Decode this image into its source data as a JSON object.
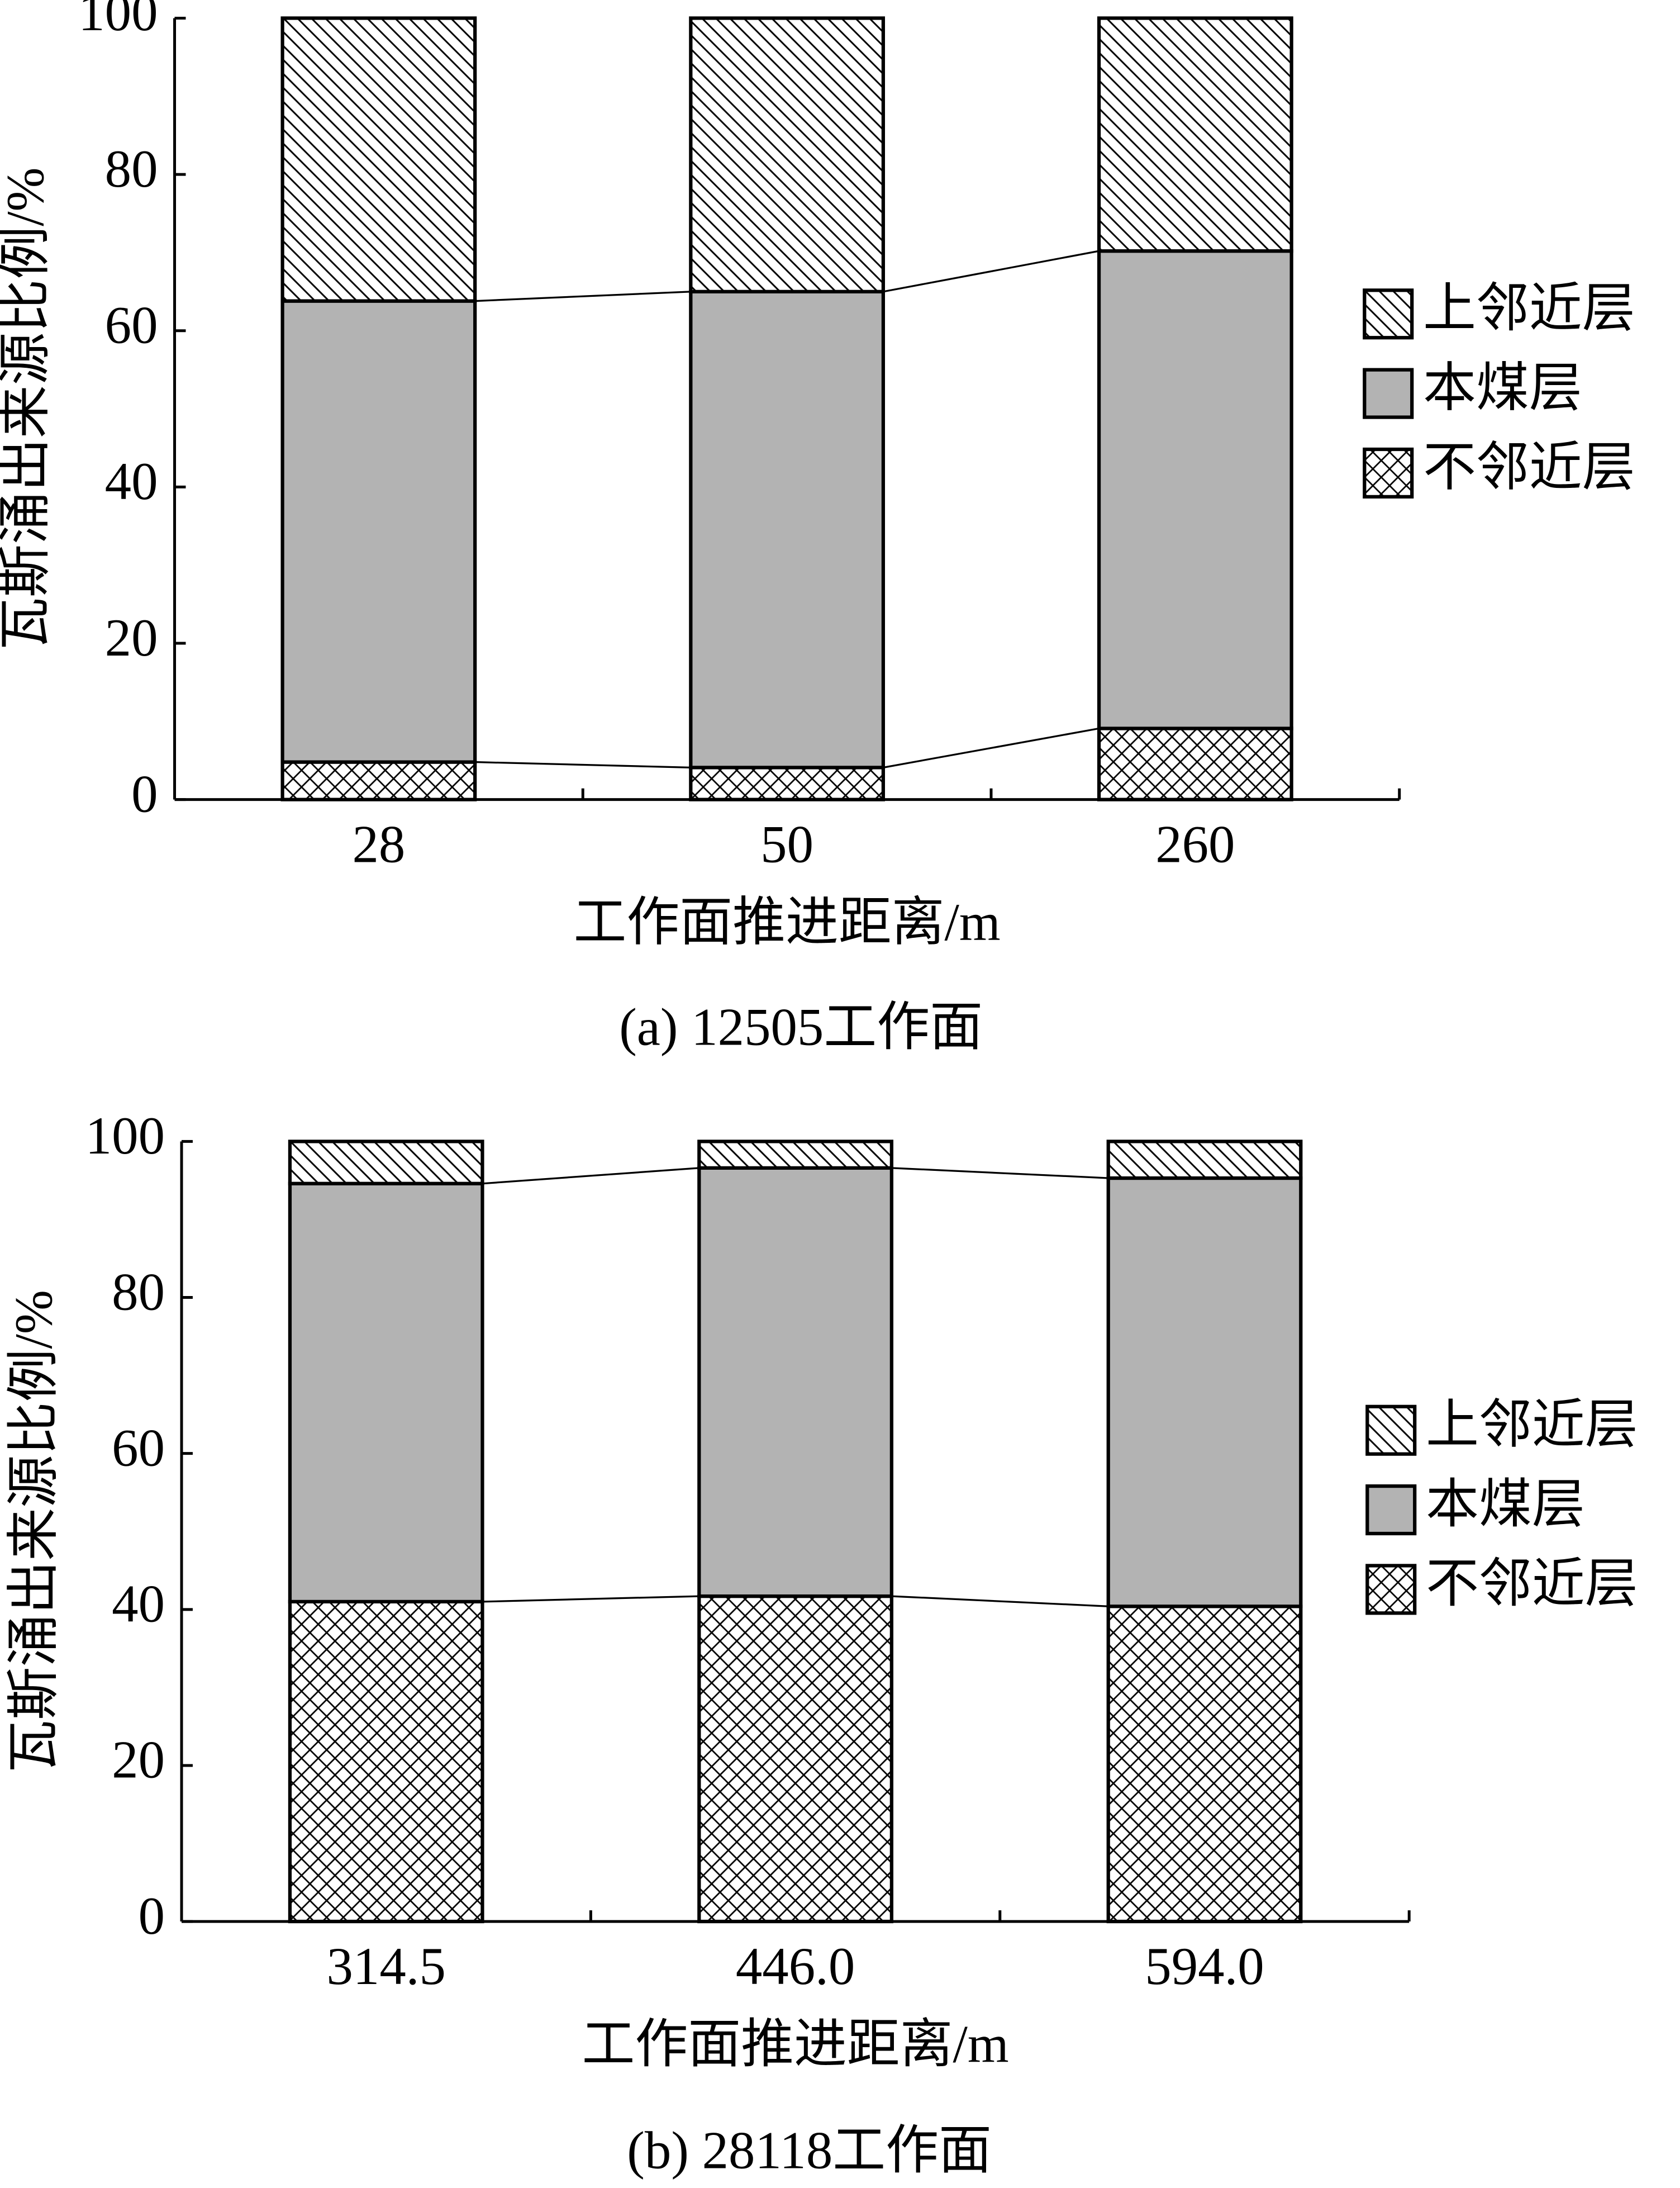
{
  "chart_data": [
    {
      "type": "bar",
      "stacked": true,
      "caption": "(a)  12505工作面",
      "x_label": "工作面推进距离/m",
      "y_label": "瓦斯涌出来源比例/%",
      "categories": [
        "28",
        "50",
        "260"
      ],
      "series": [
        {
          "name": "不邻近层",
          "color": "#ffffff",
          "hatch": "cross",
          "values": [
            4.8,
            4.1,
            9.1
          ]
        },
        {
          "name": "本煤层",
          "color": "#b3b3b3",
          "hatch": "none",
          "values": [
            59.0,
            60.9,
            61.1
          ]
        },
        {
          "name": "上邻近层",
          "color": "#ffffff",
          "hatch": "diagonal",
          "values": [
            36.2,
            35.0,
            29.8
          ]
        }
      ],
      "ylim": [
        0,
        100
      ],
      "yticks": [
        0,
        20,
        40,
        60,
        80,
        100
      ]
    },
    {
      "type": "bar",
      "stacked": true,
      "caption": "(b)  28118工作面",
      "x_label": "工作面推进距离/m",
      "y_label": "瓦斯涌出来源比例/%",
      "categories": [
        "314.5",
        "446.0",
        "594.0"
      ],
      "series": [
        {
          "name": "不邻近层",
          "color": "#ffffff",
          "hatch": "cross",
          "values": [
            41.0,
            41.7,
            40.4
          ]
        },
        {
          "name": "本煤层",
          "color": "#b3b3b3",
          "hatch": "none",
          "values": [
            53.6,
            54.9,
            54.9
          ]
        },
        {
          "name": "上邻近层",
          "color": "#ffffff",
          "hatch": "diagonal",
          "values": [
            5.4,
            3.4,
            4.7
          ]
        }
      ],
      "ylim": [
        0,
        100
      ],
      "yticks": [
        0,
        20,
        40,
        60,
        80,
        100
      ]
    }
  ]
}
